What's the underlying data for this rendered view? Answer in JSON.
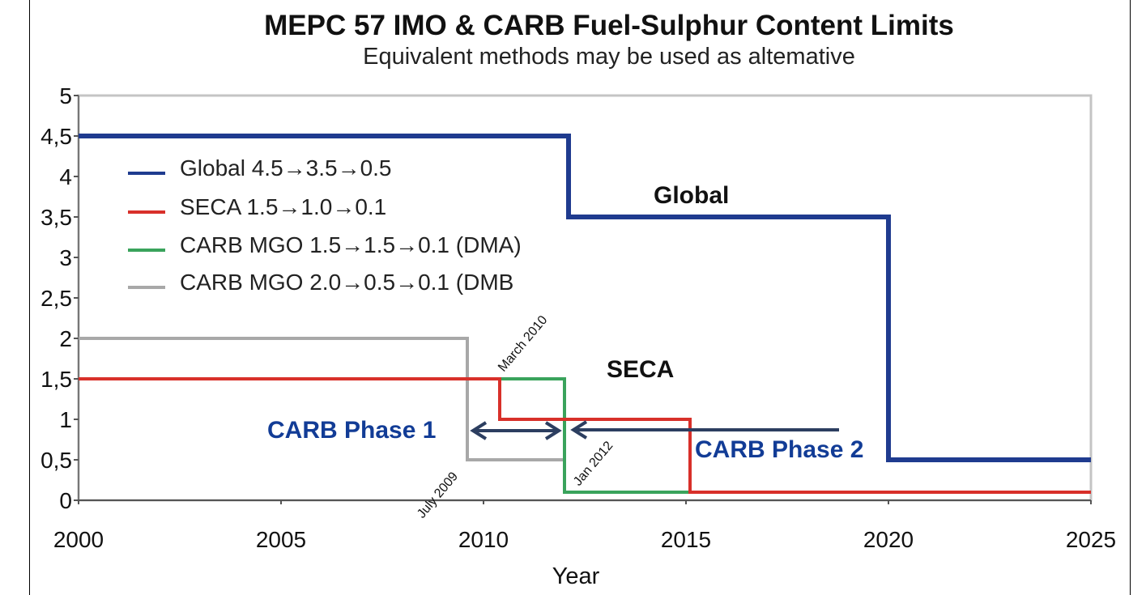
{
  "chart_data": {
    "type": "line",
    "title": "MEPC 57 IMO & CARB Fuel-Sulphur Content Limits",
    "subtitle": "Equivalent methods may be used as altemative",
    "xlabel": "Year",
    "ylabel": "",
    "xlim": [
      2000,
      2025
    ],
    "ylim": [
      0,
      5
    ],
    "x_ticks": [
      "2000",
      "2005",
      "2010",
      "2015",
      "2020",
      "2025"
    ],
    "y_ticks": [
      "0",
      "0,5",
      "1",
      "1,5",
      "2",
      "2,5",
      "3",
      "3,5",
      "4",
      "4,5",
      "5"
    ],
    "grid": false,
    "legend_position": "top-left",
    "series": [
      {
        "name": "Global 4.5→3.5→0.5",
        "color": "#1f3b8f",
        "points": [
          [
            2000,
            4.5
          ],
          [
            2012.1,
            4.5
          ],
          [
            2012.1,
            3.5
          ],
          [
            2020,
            3.5
          ],
          [
            2020,
            0.5
          ],
          [
            2025,
            0.5
          ]
        ]
      },
      {
        "name": "SECA 1.5→1.0→0.1",
        "color": "#d8302a",
        "points": [
          [
            2000,
            1.5
          ],
          [
            2010.4,
            1.5
          ],
          [
            2010.4,
            1.0
          ],
          [
            2015.1,
            1.0
          ],
          [
            2015.1,
            0.1
          ],
          [
            2025,
            0.1
          ]
        ]
      },
      {
        "name": "CARB MGO 1.5→1.5→0.1 (DMA)",
        "color": "#3aa35c",
        "points": [
          [
            2000,
            1.5
          ],
          [
            2012,
            1.5
          ],
          [
            2012,
            0.1
          ],
          [
            2025,
            0.1
          ]
        ]
      },
      {
        "name": "CARB MGO 2.0→0.5→0.1 (DMB",
        "color": "#a8a8a8",
        "points": [
          [
            2000,
            2.0
          ],
          [
            2009.6,
            2.0
          ],
          [
            2009.6,
            0.5
          ],
          [
            2012,
            0.5
          ],
          [
            2012,
            0.1
          ],
          [
            2025,
            0.1
          ]
        ]
      }
    ],
    "annotations": {
      "global": "Global",
      "seca": "SECA",
      "carb_phase1": "CARB Phase 1",
      "carb_phase2": "CARB Phase 2",
      "march_2010": "March 2010",
      "july_2009": "July 2009",
      "jan_2012": "Jan 2012"
    }
  }
}
